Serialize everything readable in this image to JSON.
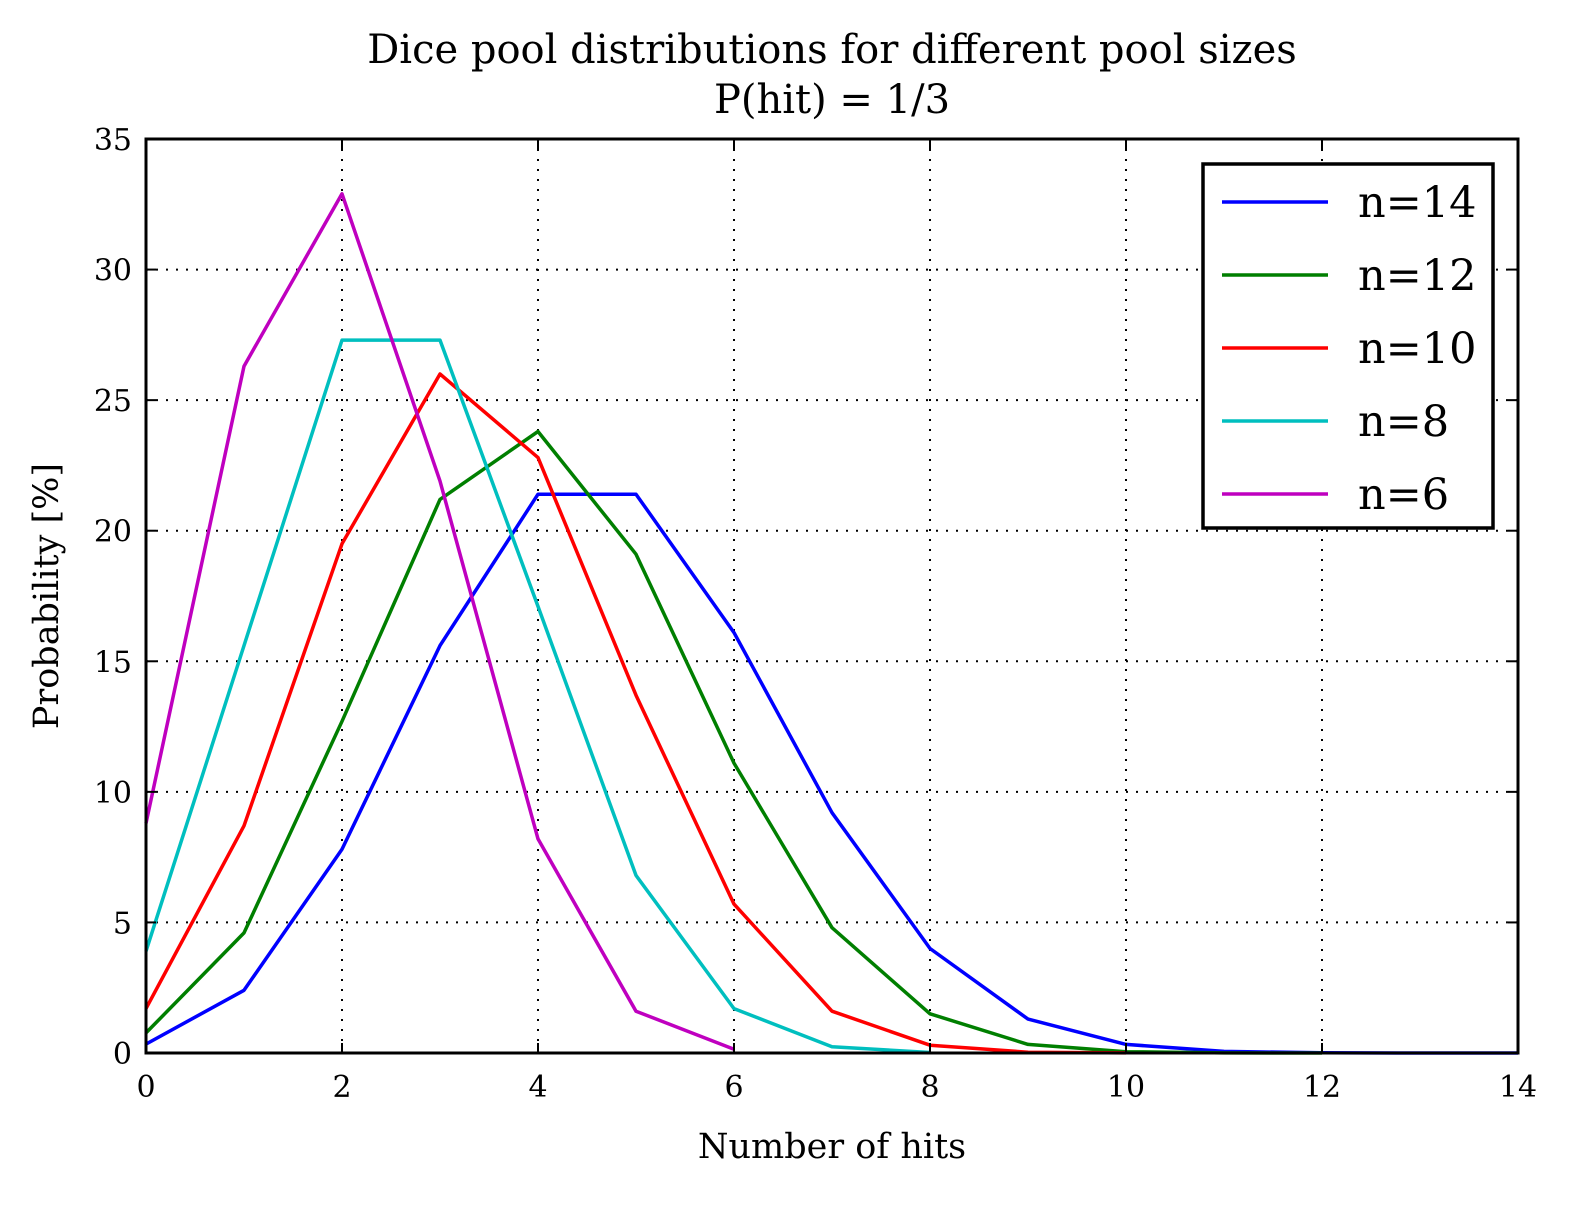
{
  "chart_data": {
    "type": "line",
    "title": "Dice pool distributions for different pool sizes",
    "subtitle": "P(hit) = 1/3",
    "xlabel": "Number of hits",
    "ylabel": "Probability [%]",
    "xlim": [
      0,
      14
    ],
    "ylim": [
      0,
      35
    ],
    "xticks": [
      "0",
      "2",
      "4",
      "6",
      "8",
      "10",
      "12",
      "14"
    ],
    "yticks": [
      "0",
      "5",
      "10",
      "15",
      "20",
      "25",
      "30",
      "35"
    ],
    "grid": true,
    "legend_position": "top-right",
    "series": [
      {
        "name": "n=14",
        "color": "#0000ff",
        "x": [
          0,
          1,
          2,
          3,
          4,
          5,
          6,
          7,
          8,
          9,
          10,
          11,
          12,
          13,
          14
        ],
        "values": [
          0.34,
          2.4,
          7.8,
          15.6,
          21.4,
          21.4,
          16.1,
          9.2,
          4.0,
          1.3,
          0.33,
          0.06,
          0.008,
          0.0006,
          0.0
        ]
      },
      {
        "name": "n=12",
        "color": "#007f00",
        "x": [
          0,
          1,
          2,
          3,
          4,
          5,
          6,
          7,
          8,
          9,
          10,
          11,
          12
        ],
        "values": [
          0.77,
          4.6,
          12.7,
          21.2,
          23.8,
          19.1,
          11.1,
          4.8,
          1.5,
          0.33,
          0.05,
          0.005,
          0.0002
        ]
      },
      {
        "name": "n=10",
        "color": "#ff0000",
        "x": [
          0,
          1,
          2,
          3,
          4,
          5,
          6,
          7,
          8,
          9,
          10
        ],
        "values": [
          1.7,
          8.7,
          19.5,
          26.0,
          22.8,
          13.7,
          5.7,
          1.6,
          0.3,
          0.03,
          0.002
        ]
      },
      {
        "name": "n=8",
        "color": "#00bfbf",
        "x": [
          0,
          1,
          2,
          3,
          4,
          5,
          6,
          7,
          8
        ],
        "values": [
          3.9,
          15.6,
          27.3,
          27.3,
          17.1,
          6.8,
          1.7,
          0.24,
          0.02
        ]
      },
      {
        "name": "n=6",
        "color": "#bf00bf",
        "x": [
          0,
          1,
          2,
          3,
          4,
          5,
          6
        ],
        "values": [
          8.8,
          26.3,
          32.9,
          21.9,
          8.2,
          1.6,
          0.14
        ]
      }
    ]
  }
}
